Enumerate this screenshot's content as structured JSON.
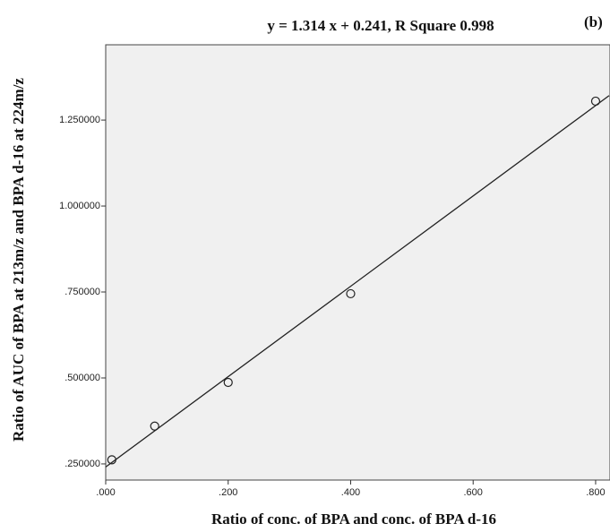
{
  "chart_data": {
    "type": "scatter",
    "title": "y = 1.314 x + 0.241,  R Square  0.998",
    "annotation": "(b)",
    "x_label": "Ratio of conc. of BPA and conc. of BPA d-16",
    "y_label": "Ratio of AUC of BPA at 213m/z and BPA d-16 at 224m/z",
    "x": [
      0.01,
      0.08,
      0.2,
      0.4,
      0.8
    ],
    "values": [
      0.262,
      0.36,
      0.487,
      0.745,
      1.305
    ],
    "fit_line": {
      "slope": 1.314,
      "intercept": 0.241
    },
    "xlim": [
      0,
      0.822
    ],
    "ylim": [
      0.203,
      1.469
    ],
    "xticks": [
      {
        "value": 0,
        "label": ".000"
      },
      {
        "value": 0.2,
        "label": ".200"
      },
      {
        "value": 0.4,
        "label": ".400"
      },
      {
        "value": 0.6,
        "label": ".600"
      },
      {
        "value": 0.8,
        "label": ".800"
      }
    ],
    "yticks": [
      {
        "value": 0.25,
        "label": ".250000"
      },
      {
        "value": 0.5,
        "label": ".500000"
      },
      {
        "value": 0.75,
        "label": ".750000"
      },
      {
        "value": 1.0,
        "label": "1.000000"
      },
      {
        "value": 1.25,
        "label": "1.250000"
      }
    ],
    "background": "#f0f0f0",
    "marker_color": "#222222",
    "line_color": "#222222"
  }
}
